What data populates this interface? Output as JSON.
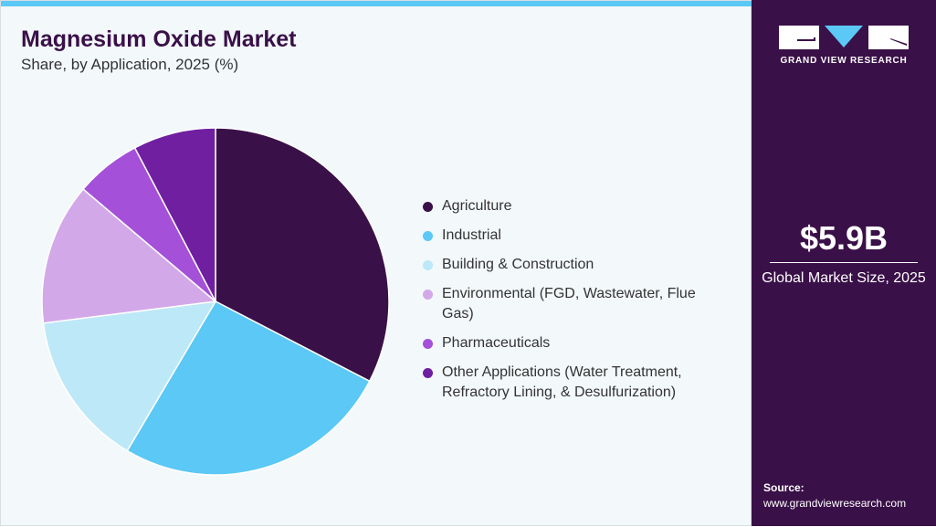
{
  "chart_data": {
    "type": "pie",
    "title": "Magnesium Oxide Market",
    "subtitle": "Share, by Application, 2025 (%)",
    "legend_position": "right",
    "categories": [
      "Agriculture",
      "Industrial",
      "Building & Construction",
      "Environmental (FGD, Wastewater, Flue Gas)",
      "Pharmaceuticals",
      "Other Applications (Water Treatment, Refractory Lining, & Desulfurization)"
    ],
    "values": [
      32.6,
      25.9,
      14.5,
      13.2,
      6.1,
      7.7
    ],
    "colors": [
      "#3a1048",
      "#5bc8f5",
      "#bde8f8",
      "#d3a8e8",
      "#a550d8",
      "#6f1fa0"
    ]
  },
  "sidebar": {
    "logo_text": "GRAND VIEW RESEARCH",
    "value": "$5.9B",
    "value_label": "Global Market Size, 2025",
    "source_label": "Source:",
    "source_url": "www.grandviewresearch.com"
  }
}
